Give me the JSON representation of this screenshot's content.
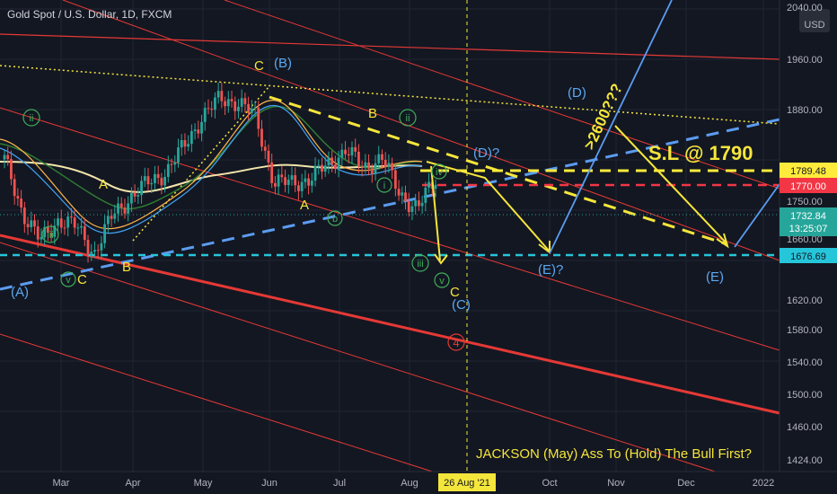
{
  "header": {
    "symbol_title": "Gold Spot / U.S. Dollar, 1D, FXCM"
  },
  "axis": {
    "currency": "USD",
    "y_ticks": [
      "2040.00",
      "1960.00",
      "1880.00",
      "1750.00",
      "1660.00",
      "1620.00",
      "1580.00",
      "1540.00",
      "1500.00",
      "1460.00",
      "1424.00"
    ],
    "x_ticks": [
      "Mar",
      "Apr",
      "May",
      "Jun",
      "Jul",
      "Aug",
      "Oct",
      "Nov",
      "Dec",
      "2022"
    ],
    "crosshair_date": "26 Aug '21"
  },
  "price_labels": {
    "sl_level": "1789.48",
    "red_level": "1770.00",
    "last_price": "1732.84",
    "countdown": "13:25:07",
    "support_level": "1676.69"
  },
  "annotations": {
    "stop_loss": "S.L @ 1790",
    "target": ">2600???",
    "note": "JACKSON (May) Ass To (Hold) The  Bull First?",
    "wave_labels_yellow": [
      "C",
      "A",
      "C",
      "B",
      "A",
      "B",
      "C"
    ],
    "wave_labels_blue": [
      "(B)",
      "(D)",
      "(D)?",
      "(E)?",
      "(E)",
      "(C)",
      "(A)"
    ],
    "wave_labels_green": [
      "ii",
      "iii",
      "iv",
      "v",
      "i",
      "b",
      "ii",
      "iii",
      "iv",
      "v",
      "i"
    ],
    "wave_red": "4"
  },
  "colors": {
    "background": "#131722",
    "bull_candle": "#26a69a",
    "bear_candle": "#ef5350",
    "channel_red": "#e53935",
    "trend_blue": "#5b9cf0",
    "projection_yellow": "#f5e63b",
    "sl_line": "#ffeb3b",
    "red_dashed": "#f23645",
    "cyan_dashed": "#26c6da"
  },
  "chart_data": {
    "type": "line",
    "title": "Gold Spot / U.S. Dollar, 1D, FXCM",
    "xlabel": "",
    "ylabel": "",
    "ylim": [
      1424,
      2040
    ],
    "x": [
      "2021-02-20",
      "2021-03-01",
      "2021-03-08",
      "2021-03-15",
      "2021-03-22",
      "2021-03-31",
      "2021-04-08",
      "2021-04-15",
      "2021-04-22",
      "2021-05-01",
      "2021-05-10",
      "2021-05-18",
      "2021-05-25",
      "2021-06-01",
      "2021-06-08",
      "2021-06-15",
      "2021-06-22",
      "2021-07-01",
      "2021-07-08",
      "2021-07-15",
      "2021-07-22",
      "2021-08-01",
      "2021-08-06",
      "2021-08-12",
      "2021-08-20"
    ],
    "series": [
      {
        "values": [
          1812,
          1740,
          1700,
          1730,
          1720,
          1684,
          1735,
          1760,
          1780,
          1795,
          1830,
          1870,
          1895,
          1890,
          1870,
          1780,
          1780,
          1785,
          1805,
          1825,
          1800,
          1815,
          1765,
          1745,
          1785
        ]
      }
    ],
    "horizontal_levels": [
      1789.48,
      1770.0,
      1732.84,
      1676.69
    ]
  }
}
